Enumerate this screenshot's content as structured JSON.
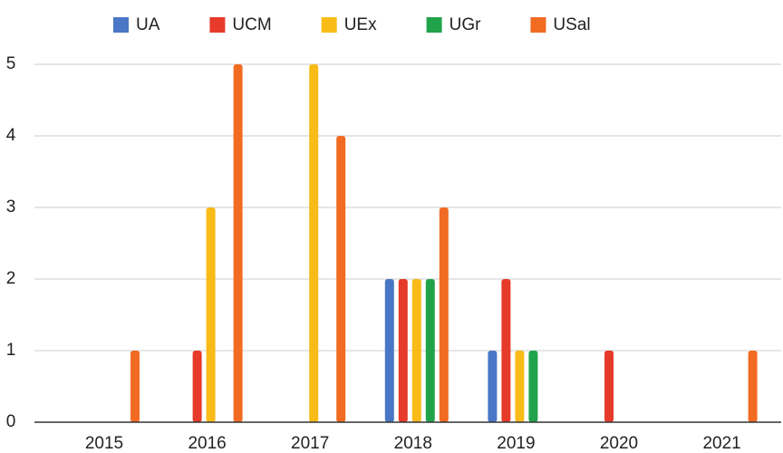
{
  "chart_data": {
    "type": "bar",
    "categories": [
      "2015",
      "2016",
      "2017",
      "2018",
      "2019",
      "2020",
      "2021"
    ],
    "series": [
      {
        "name": "UA",
        "color": "#4a76c6",
        "values": [
          0,
          0,
          0,
          2,
          1,
          0,
          0
        ]
      },
      {
        "name": "UCM",
        "color": "#e63a2a",
        "values": [
          0,
          1,
          0,
          2,
          2,
          1,
          0
        ]
      },
      {
        "name": "UEx",
        "color": "#f8bb17",
        "values": [
          0,
          3,
          5,
          2,
          1,
          0,
          0
        ]
      },
      {
        "name": "UGr",
        "color": "#21a34b",
        "values": [
          0,
          0,
          0,
          2,
          1,
          0,
          0
        ]
      },
      {
        "name": "USal",
        "color": "#f26b22",
        "values": [
          1,
          5,
          4,
          3,
          0,
          0,
          1
        ]
      }
    ],
    "ylim": [
      0,
      5
    ],
    "yticks": [
      0,
      1,
      2,
      3,
      4,
      5
    ],
    "grid": true,
    "legend": "top"
  }
}
